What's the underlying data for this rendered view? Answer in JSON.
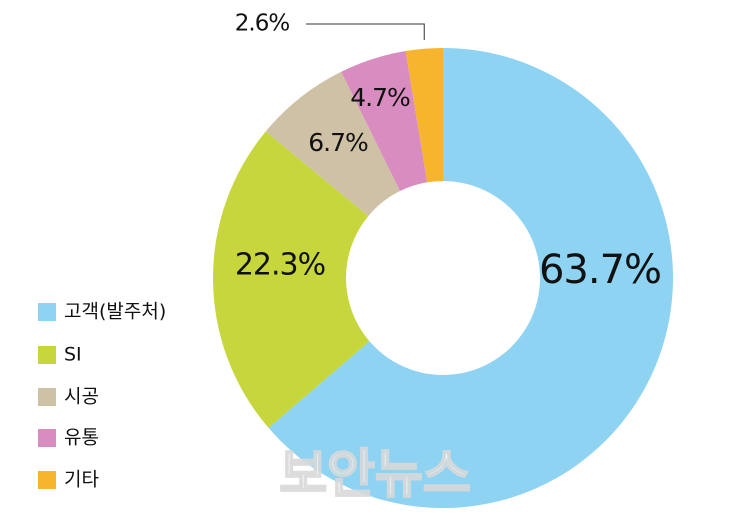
{
  "chart_data": {
    "type": "donut",
    "categories": [
      "고객(발주처)",
      "SI",
      "시공",
      "유통",
      "기타"
    ],
    "values": [
      63.7,
      22.3,
      6.7,
      4.7,
      2.6
    ],
    "value_labels": [
      "63.7%",
      "22.3%",
      "6.7%",
      "4.7%",
      "2.6%"
    ],
    "colors": [
      "#8fd3f3",
      "#c6d63c",
      "#cfc1a6",
      "#d88cbf",
      "#f7b52e"
    ],
    "legend": "left",
    "watermark": "보안뉴스"
  }
}
